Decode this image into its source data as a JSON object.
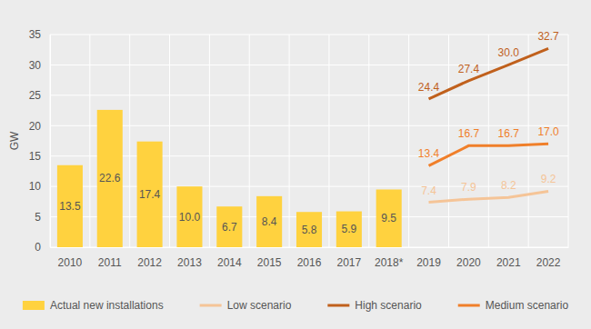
{
  "chart_data": {
    "type": "bar",
    "y_label": "GW",
    "categories": [
      "2010",
      "2011",
      "2012",
      "2013",
      "2014",
      "2015",
      "2016",
      "2017",
      "2018*",
      "2019",
      "2020",
      "2021",
      "2022"
    ],
    "ylim": [
      0,
      35
    ],
    "yticks": [
      0,
      5,
      10,
      15,
      20,
      25,
      30,
      35
    ],
    "grid": true,
    "legend": "bottom",
    "data_labels": true,
    "series": [
      {
        "name": "Actual new installations",
        "type": "bar",
        "color": "#ffd23f",
        "values": [
          13.5,
          22.6,
          17.4,
          10.0,
          6.7,
          8.4,
          5.8,
          5.9,
          9.5,
          null,
          null,
          null,
          null
        ],
        "value_labels": [
          "13.5",
          "22.6",
          "17.4",
          "10.0",
          "6.7",
          "8.4",
          "5.8",
          "5.9",
          "9.5",
          null,
          null,
          null,
          null
        ]
      },
      {
        "name": "Low scenario",
        "type": "line",
        "color": "#f5c497",
        "values": [
          null,
          null,
          null,
          null,
          null,
          null,
          null,
          null,
          null,
          7.4,
          7.9,
          8.2,
          9.2
        ],
        "value_labels": [
          null,
          null,
          null,
          null,
          null,
          null,
          null,
          null,
          null,
          "7.4",
          "7.9",
          "8.2",
          "9.2"
        ]
      },
      {
        "name": "High scenario",
        "type": "line",
        "color": "#c0601c",
        "values": [
          null,
          null,
          null,
          null,
          null,
          null,
          null,
          null,
          null,
          24.4,
          27.4,
          30.0,
          32.7
        ],
        "value_labels": [
          null,
          null,
          null,
          null,
          null,
          null,
          null,
          null,
          null,
          "24.4",
          "27.4",
          "30.0",
          "32.7"
        ]
      },
      {
        "name": "Medium scenario",
        "type": "line",
        "color": "#f07f2a",
        "values": [
          null,
          null,
          null,
          null,
          null,
          null,
          null,
          null,
          null,
          13.4,
          16.7,
          16.7,
          17.0
        ],
        "value_labels": [
          null,
          null,
          null,
          null,
          null,
          null,
          null,
          null,
          null,
          "13.4",
          "16.7",
          "16.7",
          "17.0"
        ]
      }
    ]
  }
}
